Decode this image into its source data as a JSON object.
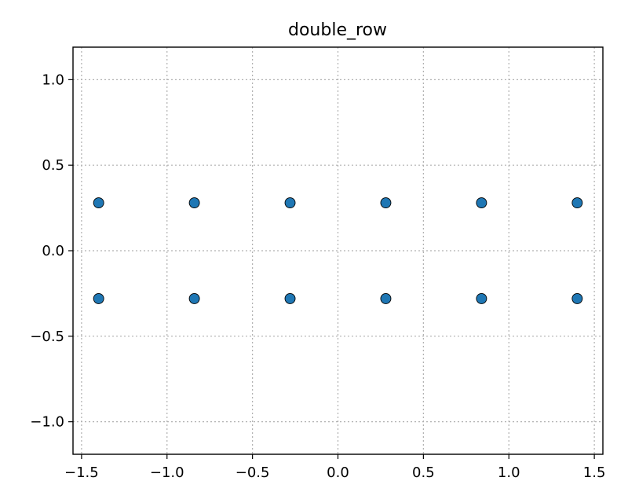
{
  "chart_data": {
    "type": "scatter",
    "title": "double_row",
    "xlabel": "",
    "ylabel": "",
    "xlim": [
      -1.55,
      1.55
    ],
    "ylim": [
      -1.19,
      1.19
    ],
    "x_ticks": [
      -1.5,
      -1.0,
      -0.5,
      0.0,
      0.5,
      1.0,
      1.5
    ],
    "x_tick_labels": [
      "−1.5",
      "−1.0",
      "−0.5",
      "0.0",
      "0.5",
      "1.0",
      "1.5"
    ],
    "y_ticks": [
      -1.0,
      -0.5,
      0.0,
      0.5,
      1.0
    ],
    "y_tick_labels": [
      "−1.0",
      "−0.5",
      "0.0",
      "0.5",
      "1.0"
    ],
    "grid": true,
    "marker_color": "#1f77b4",
    "marker_edge_color": "#000000",
    "points": [
      {
        "x": -1.4,
        "y": 0.28
      },
      {
        "x": -0.84,
        "y": 0.28
      },
      {
        "x": -0.28,
        "y": 0.28
      },
      {
        "x": 0.28,
        "y": 0.28
      },
      {
        "x": 0.84,
        "y": 0.28
      },
      {
        "x": 1.4,
        "y": 0.28
      },
      {
        "x": -1.4,
        "y": -0.28
      },
      {
        "x": -0.84,
        "y": -0.28
      },
      {
        "x": -0.28,
        "y": -0.28
      },
      {
        "x": 0.28,
        "y": -0.28
      },
      {
        "x": 0.84,
        "y": -0.28
      },
      {
        "x": 1.4,
        "y": -0.28
      }
    ]
  }
}
